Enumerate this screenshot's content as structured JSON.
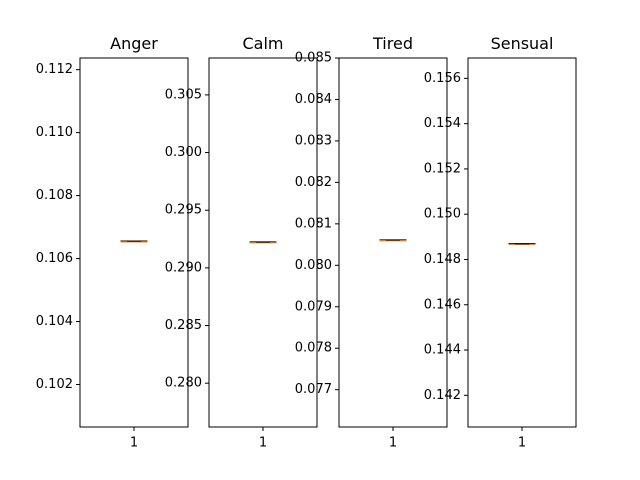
{
  "chart_data": [
    {
      "type": "box",
      "title": "Anger",
      "categories": [
        "1"
      ],
      "ylim": [
        0.10065,
        0.11237
      ],
      "yticks": [
        0.102,
        0.104,
        0.106,
        0.108,
        0.11,
        0.112
      ],
      "ytick_labels": [
        "0.102",
        "0.104",
        "0.106",
        "0.108",
        "0.110",
        "0.112"
      ],
      "values": [
        0.10654
      ],
      "colors": {
        "box": "#000000",
        "median": "#ff7f0e"
      }
    },
    {
      "type": "box",
      "title": "Calm",
      "categories": [
        "1"
      ],
      "ylim": [
        0.2762,
        0.3082
      ],
      "yticks": [
        0.28,
        0.285,
        0.29,
        0.295,
        0.3,
        0.305
      ],
      "ytick_labels": [
        "0.280",
        "0.285",
        "0.290",
        "0.295",
        "0.300",
        "0.305"
      ],
      "values": [
        0.2922
      ],
      "colors": {
        "box": "#000000",
        "median": "#ff7f0e"
      }
    },
    {
      "type": "box",
      "title": "Tired",
      "categories": [
        "1"
      ],
      "ylim": [
        0.0761,
        0.085
      ],
      "yticks": [
        0.077,
        0.078,
        0.079,
        0.08,
        0.081,
        0.082,
        0.083,
        0.084,
        0.085
      ],
      "ytick_labels": [
        "0.077",
        "0.078",
        "0.079",
        "0.080",
        "0.081",
        "0.082",
        "0.083",
        "0.084",
        "0.085"
      ],
      "values": [
        0.0806
      ],
      "colors": {
        "box": "#000000",
        "median": "#ff7f0e"
      }
    },
    {
      "type": "box",
      "title": "Sensual",
      "categories": [
        "1"
      ],
      "ylim": [
        0.1406,
        0.1569
      ],
      "yticks": [
        0.142,
        0.144,
        0.146,
        0.148,
        0.15,
        0.152,
        0.154,
        0.156
      ],
      "ytick_labels": [
        "0.142",
        "0.144",
        "0.146",
        "0.148",
        "0.150",
        "0.152",
        "0.154",
        "0.156"
      ],
      "values": [
        0.14868
      ],
      "colors": {
        "box": "#000000",
        "median": "#ff7f0e"
      }
    }
  ]
}
